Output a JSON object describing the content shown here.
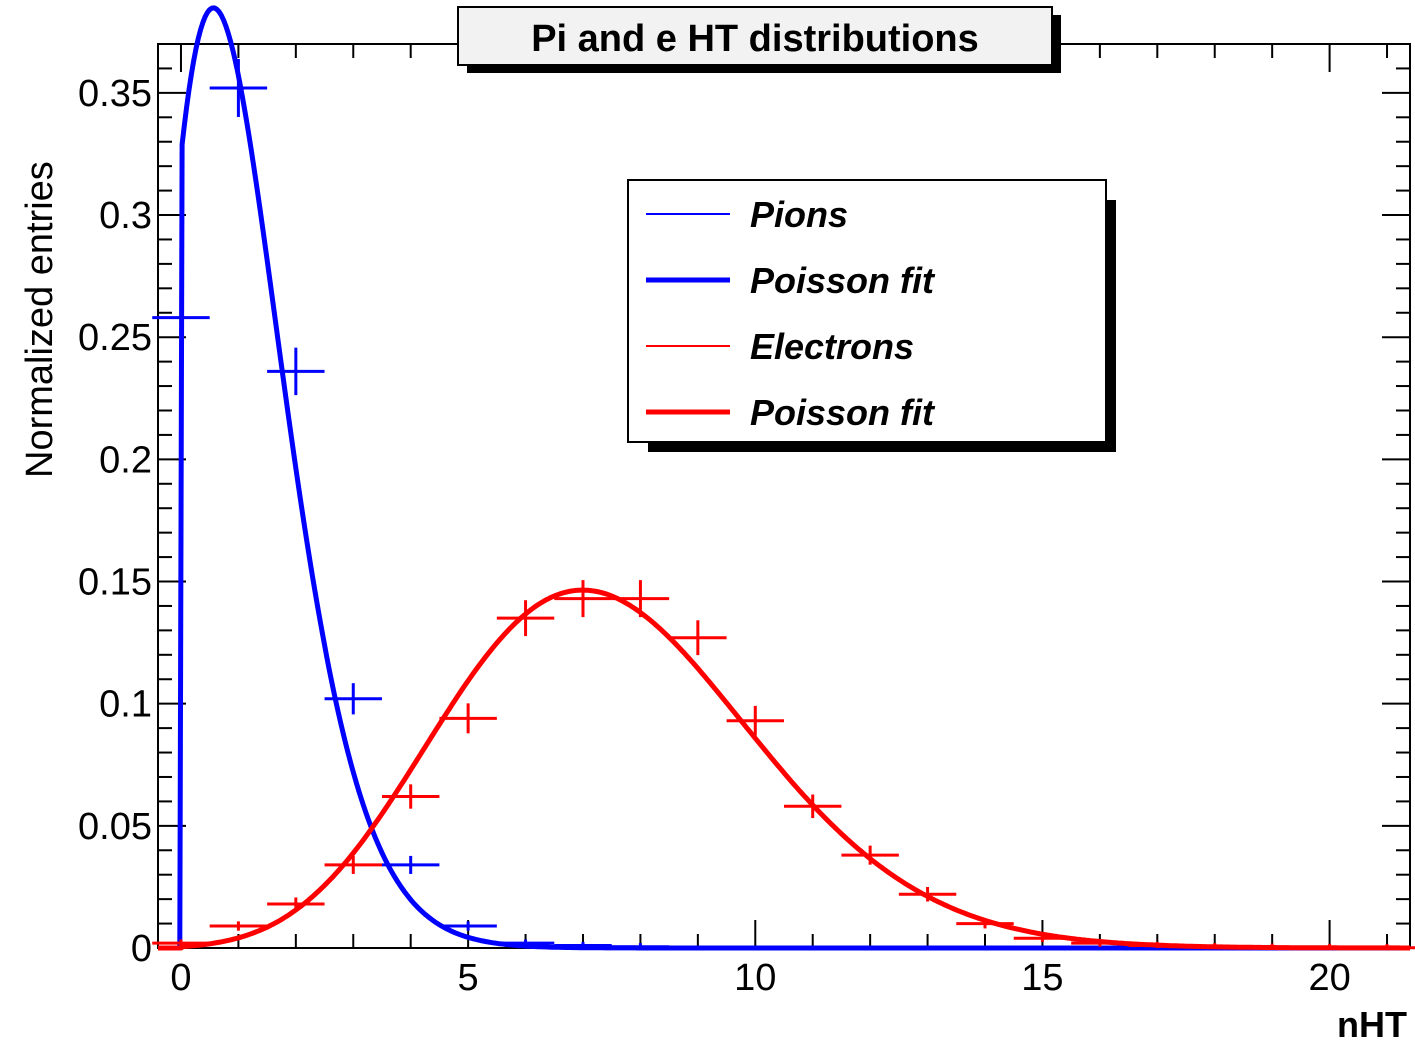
{
  "chart_data": {
    "type": "line",
    "title": "Pi and e HT distributions",
    "xlabel": "nHT",
    "ylabel": "Normalized entries",
    "xlim": [
      -0.4,
      21.4
    ],
    "ylim": [
      0,
      0.37
    ],
    "xticks": [
      0,
      5,
      10,
      15,
      20
    ],
    "xtick_labels": [
      "0",
      "5",
      "10",
      "15",
      "20"
    ],
    "yticks": [
      0,
      0.05,
      0.1,
      0.15,
      0.2,
      0.25,
      0.3,
      0.35
    ],
    "ytick_labels": [
      "0",
      "0.05",
      "0.1",
      "0.15",
      "0.2",
      "0.25",
      "0.3",
      "0.35"
    ],
    "legend_position": "top-right",
    "grid": false,
    "series": [
      {
        "name": "Pions",
        "style": "histogram",
        "color": "#0000ff",
        "x": [
          0,
          1,
          2,
          3,
          4,
          5,
          6,
          7,
          8
        ],
        "y": [
          0.258,
          0.352,
          0.236,
          0.102,
          0.034,
          0.009,
          0.002,
          0.001,
          0.0005
        ]
      },
      {
        "name": "Poisson fit",
        "style": "fit",
        "color": "#0000ff",
        "mean": 1.1,
        "scale": 0.975,
        "xrange": [
          -0.1,
          21.4
        ]
      },
      {
        "name": "Electrons",
        "style": "histogram",
        "color": "#ff0000",
        "x": [
          0,
          1,
          2,
          3,
          4,
          5,
          6,
          7,
          8,
          9,
          10,
          11,
          12,
          13,
          14,
          15,
          16,
          17,
          18,
          19,
          20,
          21
        ],
        "y": [
          0.002,
          0.009,
          0.018,
          0.034,
          0.062,
          0.094,
          0.135,
          0.143,
          0.143,
          0.127,
          0.093,
          0.058,
          0.038,
          0.022,
          0.01,
          0.004,
          0.002,
          0.001,
          0.0005,
          0.0003,
          0.0002,
          0.0001
        ]
      },
      {
        "name": "Poisson fit",
        "style": "fit",
        "color": "#ff0000",
        "mean": 7.5,
        "scale": 1.0,
        "xrange": [
          -0.4,
          21.4
        ]
      }
    ]
  }
}
